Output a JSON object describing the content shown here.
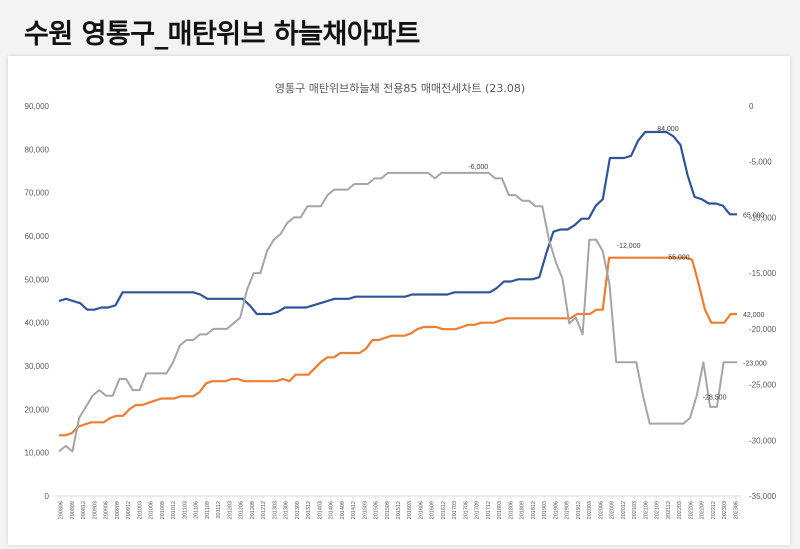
{
  "page_title": "수원 영통구_매탄위브 하늘채아파트",
  "chart_data": {
    "type": "line",
    "title": "영통구 매탄위브하늘채 전용85 매매전세차트 (23.08)",
    "xlabel": "",
    "ylabel": "",
    "grid": false,
    "legend": "none",
    "x_tick_labels": [
      "200806",
      "200809",
      "200812",
      "200903",
      "200906",
      "200909",
      "200912",
      "201003",
      "201006",
      "201009",
      "201012",
      "201103",
      "201106",
      "201109",
      "201112",
      "201203",
      "201206",
      "201209",
      "201212",
      "201303",
      "201306",
      "201309",
      "201312",
      "201403",
      "201406",
      "201409",
      "201412",
      "201503",
      "201506",
      "201509",
      "201512",
      "201603",
      "201606",
      "201609",
      "201612",
      "201703",
      "201706",
      "201709",
      "201712",
      "201803",
      "201806",
      "201809",
      "201812",
      "201903",
      "201906",
      "201909",
      "201912",
      "202003",
      "202006",
      "202009",
      "202012",
      "202103",
      "202106",
      "202109",
      "202112",
      "202203",
      "202206",
      "202209",
      "202212",
      "202303",
      "202306"
    ],
    "y_left": {
      "ylim": [
        0,
        90000
      ],
      "ticks": [
        "0",
        "10,000",
        "20,000",
        "30,000",
        "40,000",
        "50,000",
        "60,000",
        "70,000",
        "80,000",
        "90,000"
      ]
    },
    "y_right": {
      "ylim": [
        -35000,
        0
      ],
      "ticks": [
        "0",
        "-5,000",
        "-10,000",
        "-15,000",
        "-20,000",
        "-25,000",
        "-30,000",
        "-35,000"
      ]
    },
    "series": [
      {
        "axis": "left",
        "color": "#2f5597",
        "values": [
          45000,
          45500,
          45000,
          44500,
          43000,
          43000,
          43500,
          43500,
          44000,
          47000,
          47000,
          47000,
          47000,
          47000,
          47000,
          47000,
          47000,
          47000,
          47000,
          47000,
          46500,
          45500,
          45500,
          45500,
          45500,
          45500,
          45500,
          44000,
          42000,
          42000,
          42000,
          42500,
          43500,
          43500,
          43500,
          43500,
          44000,
          44500,
          45000,
          45500,
          45500,
          45500,
          46000,
          46000,
          46000,
          46000,
          46000,
          46000,
          46000,
          46000,
          46500,
          46500,
          46500,
          46500,
          46500,
          46500,
          47000,
          47000,
          47000,
          47000,
          47000,
          47000,
          48000,
          49500,
          49500,
          50000,
          50000,
          50000,
          50500,
          56000,
          61000,
          61500,
          61500,
          62500,
          64000,
          64000,
          67000,
          68500,
          78000,
          78000,
          78000,
          78500,
          82000,
          84000,
          84000,
          84000,
          84000,
          83000,
          81000,
          74000,
          69000,
          68500,
          67500,
          67500,
          67000,
          65000,
          65000
        ]
      },
      {
        "axis": "left",
        "color": "#ed7d31",
        "values": [
          14000,
          14000,
          14500,
          16000,
          16500,
          17000,
          17000,
          17000,
          18000,
          18500,
          18500,
          20000,
          21000,
          21000,
          21500,
          22000,
          22500,
          22500,
          22500,
          23000,
          23000,
          23000,
          24000,
          26000,
          26500,
          26500,
          26500,
          27000,
          27000,
          26500,
          26500,
          26500,
          26500,
          26500,
          26500,
          27000,
          26500,
          28000,
          28000,
          28000,
          29500,
          31000,
          32000,
          32000,
          33000,
          33000,
          33000,
          33000,
          34000,
          36000,
          36000,
          36500,
          37000,
          37000,
          37000,
          37500,
          38500,
          39000,
          39000,
          39000,
          38500,
          38500,
          38500,
          39000,
          39500,
          39500,
          40000,
          40000,
          40000,
          40500,
          41000,
          41000,
          41000,
          41000,
          41000,
          41000,
          41000,
          41000,
          41000,
          41000,
          41000,
          42000,
          42000,
          42000,
          43000,
          43000,
          55000,
          55000,
          55000,
          55000,
          55000,
          55000,
          55000,
          55000,
          55000,
          55000,
          55000,
          55000,
          55000,
          54500,
          49000,
          43000,
          40000,
          40000,
          40000,
          42000,
          42000
        ]
      },
      {
        "axis": "right",
        "color": "#a5a5a5",
        "values": [
          -31000,
          -30500,
          -31000,
          -28000,
          -27000,
          -26000,
          -25500,
          -26000,
          -26000,
          -24500,
          -24500,
          -25500,
          -25500,
          -24000,
          -24000,
          -24000,
          -24000,
          -23000,
          -21500,
          -21000,
          -21000,
          -20500,
          -20500,
          -20000,
          -20000,
          -20000,
          -19500,
          -19000,
          -16500,
          -15000,
          -15000,
          -13000,
          -12000,
          -11500,
          -10500,
          -10000,
          -10000,
          -9000,
          -9000,
          -9000,
          -8000,
          -7500,
          -7500,
          -7500,
          -7000,
          -7000,
          -7000,
          -6500,
          -6500,
          -6000,
          -6000,
          -6000,
          -6000,
          -6000,
          -6000,
          -6000,
          -6500,
          -6000,
          -6000,
          -6000,
          -6000,
          -6000,
          -6000,
          -6000,
          -6000,
          -6500,
          -6500,
          -8000,
          -8000,
          -8500,
          -8500,
          -9000,
          -9000,
          -12000,
          -14000,
          -15500,
          -19500,
          -19000,
          -20500,
          -12000,
          -12000,
          -13000,
          -16000,
          -23000,
          -23000,
          -23000,
          -23000,
          -26000,
          -28500,
          -28500,
          -28500,
          -28500,
          -28500,
          -28500,
          -28000,
          -26000,
          -23000,
          -27000,
          -27000,
          -23000,
          -23000,
          -23000
        ]
      }
    ],
    "annotations": [
      {
        "text": "84,000"
      },
      {
        "text": "65,000"
      },
      {
        "text": "55,000"
      },
      {
        "text": "42,000"
      },
      {
        "text": "-6,000"
      },
      {
        "text": "-12,000"
      },
      {
        "text": "-23,000"
      },
      {
        "text": "-28,500"
      }
    ]
  }
}
